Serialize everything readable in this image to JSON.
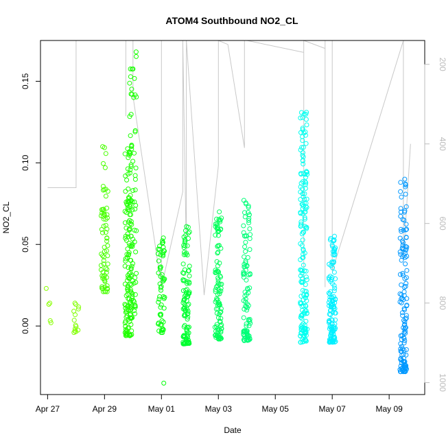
{
  "chart_data": {
    "type": "scatter",
    "title": "ATOM4 Southbound NO2_CL",
    "xlabel": "Date",
    "ylabel": "NO2_CL",
    "x_ticks": [
      "Apr 27",
      "Apr 29",
      "May 01",
      "May 03",
      "May 05",
      "May 07",
      "May 09"
    ],
    "x_tick_values": [
      "2016-04-27",
      "2016-04-29",
      "2016-05-01",
      "2016-05-03",
      "2016-05-05",
      "2016-05-07",
      "2016-05-09"
    ],
    "xlim": [
      "2016-04-26 18:00",
      "2016-05-10 06:00"
    ],
    "y_ticks": [
      "0.00",
      "0.05",
      "0.10",
      "0.15"
    ],
    "y_tick_values": [
      0.0,
      0.05,
      0.1,
      0.15
    ],
    "ylim": [
      -0.042,
      0.175
    ],
    "secondary_axis": {
      "side": "right",
      "reversed": true,
      "ticks": [
        "200",
        "400",
        "600",
        "800",
        "1000"
      ],
      "tick_values": [
        200,
        400,
        600,
        800,
        1000
      ],
      "lim": [
        1030,
        140
      ],
      "color": "#bbbbbb"
    },
    "grid": false,
    "legend": "none",
    "point_colors": [
      "#80ff00",
      "#00ff00",
      "#00ff80",
      "#00ffff",
      "#0080ff"
    ],
    "line_color": "#c8c8c8",
    "clusters": [
      {
        "x": "2016-04-27 00:00",
        "y_min": 0.002,
        "y_max": 0.023,
        "n": 5,
        "color": "#88ff00"
      },
      {
        "x": "2016-04-28 00:00",
        "y_min": -0.004,
        "y_max": 0.014,
        "n": 14,
        "color": "#80ff00"
      },
      {
        "x": "2016-04-29 00:00",
        "y_min": 0.021,
        "y_max": 0.11,
        "n": 70,
        "color": "#48ff00"
      },
      {
        "x": "2016-04-29 20:00",
        "y_min": -0.006,
        "y_max": 0.11,
        "n": 130,
        "color": "#20ff00"
      },
      {
        "x": "2016-04-30 00:00",
        "y_min": 0.005,
        "y_max": 0.168,
        "n": 80,
        "color": "#18ff00"
      },
      {
        "x": "2016-05-01 00:00",
        "y_min": -0.004,
        "y_max": 0.054,
        "n": 55,
        "color": "#00ff08"
      },
      {
        "x": "2016-05-01 00:00",
        "y_min": -0.035,
        "y_max": -0.035,
        "n": 1,
        "color": "#00ff08"
      },
      {
        "x": "2016-05-01 21:00",
        "y_min": -0.011,
        "y_max": 0.061,
        "n": 110,
        "color": "#00ff30"
      },
      {
        "x": "2016-05-03 00:00",
        "y_min": -0.008,
        "y_max": 0.07,
        "n": 110,
        "color": "#00ff58"
      },
      {
        "x": "2016-05-04 00:00",
        "y_min": -0.009,
        "y_max": 0.077,
        "n": 100,
        "color": "#00ff78"
      },
      {
        "x": "2016-05-06 00:00",
        "y_min": -0.01,
        "y_max": 0.131,
        "n": 170,
        "color": "#00fff0"
      },
      {
        "x": "2016-05-07 00:00",
        "y_min": -0.01,
        "y_max": 0.055,
        "n": 120,
        "color": "#00f0ff"
      },
      {
        "x": "2016-05-09 12:00",
        "y_min": -0.028,
        "y_max": 0.09,
        "n": 140,
        "color": "#0098ff"
      }
    ],
    "secondary_series": {
      "name": "",
      "points": [
        [
          "2016-04-27 00:00",
          510
        ],
        [
          "2016-04-28 00:00",
          510
        ],
        [
          "2016-04-28 00:00",
          140
        ],
        [
          "2016-04-28 00:00",
          140
        ],
        [
          "2016-04-29 18:00",
          140
        ],
        [
          "2016-04-29 18:00",
          330
        ],
        [
          "2016-04-29 18:00",
          140
        ],
        [
          "2016-04-30 00:00",
          140
        ],
        [
          "2016-04-30 00:00",
          280
        ],
        [
          "2016-05-01 00:00",
          760
        ],
        [
          "2016-05-01 00:00",
          140
        ],
        [
          "2016-05-01 00:00",
          760
        ],
        [
          "2016-05-01 18:00",
          520
        ],
        [
          "2016-05-01 18:00",
          140
        ],
        [
          "2016-05-01 21:00",
          680
        ],
        [
          "2016-05-01 21:00",
          140
        ],
        [
          "2016-05-02 12:00",
          780
        ],
        [
          "2016-05-03 00:00",
          455
        ],
        [
          "2016-05-03 00:00",
          140
        ],
        [
          "2016-05-03 08:00",
          150
        ],
        [
          "2016-05-03 22:00",
          410
        ],
        [
          "2016-05-03 22:00",
          140
        ],
        [
          "2016-05-04 00:00",
          140
        ],
        [
          "2016-05-06 00:00",
          170
        ],
        [
          "2016-05-06 00:00",
          140
        ],
        [
          "2016-05-06 00:00",
          760
        ],
        [
          "2016-05-06 00:00",
          140
        ],
        [
          "2016-05-06 18:00",
          160
        ],
        [
          "2016-05-06 18:00",
          760
        ],
        [
          "2016-05-06 18:00",
          140
        ],
        [
          "2016-05-07 00:00",
          140
        ],
        [
          "2016-05-07 00:00",
          720
        ],
        [
          "2016-05-09 12:00",
          140
        ],
        [
          "2016-05-09 12:00",
          690
        ],
        [
          "2016-05-09 18:00",
          400
        ]
      ]
    }
  }
}
